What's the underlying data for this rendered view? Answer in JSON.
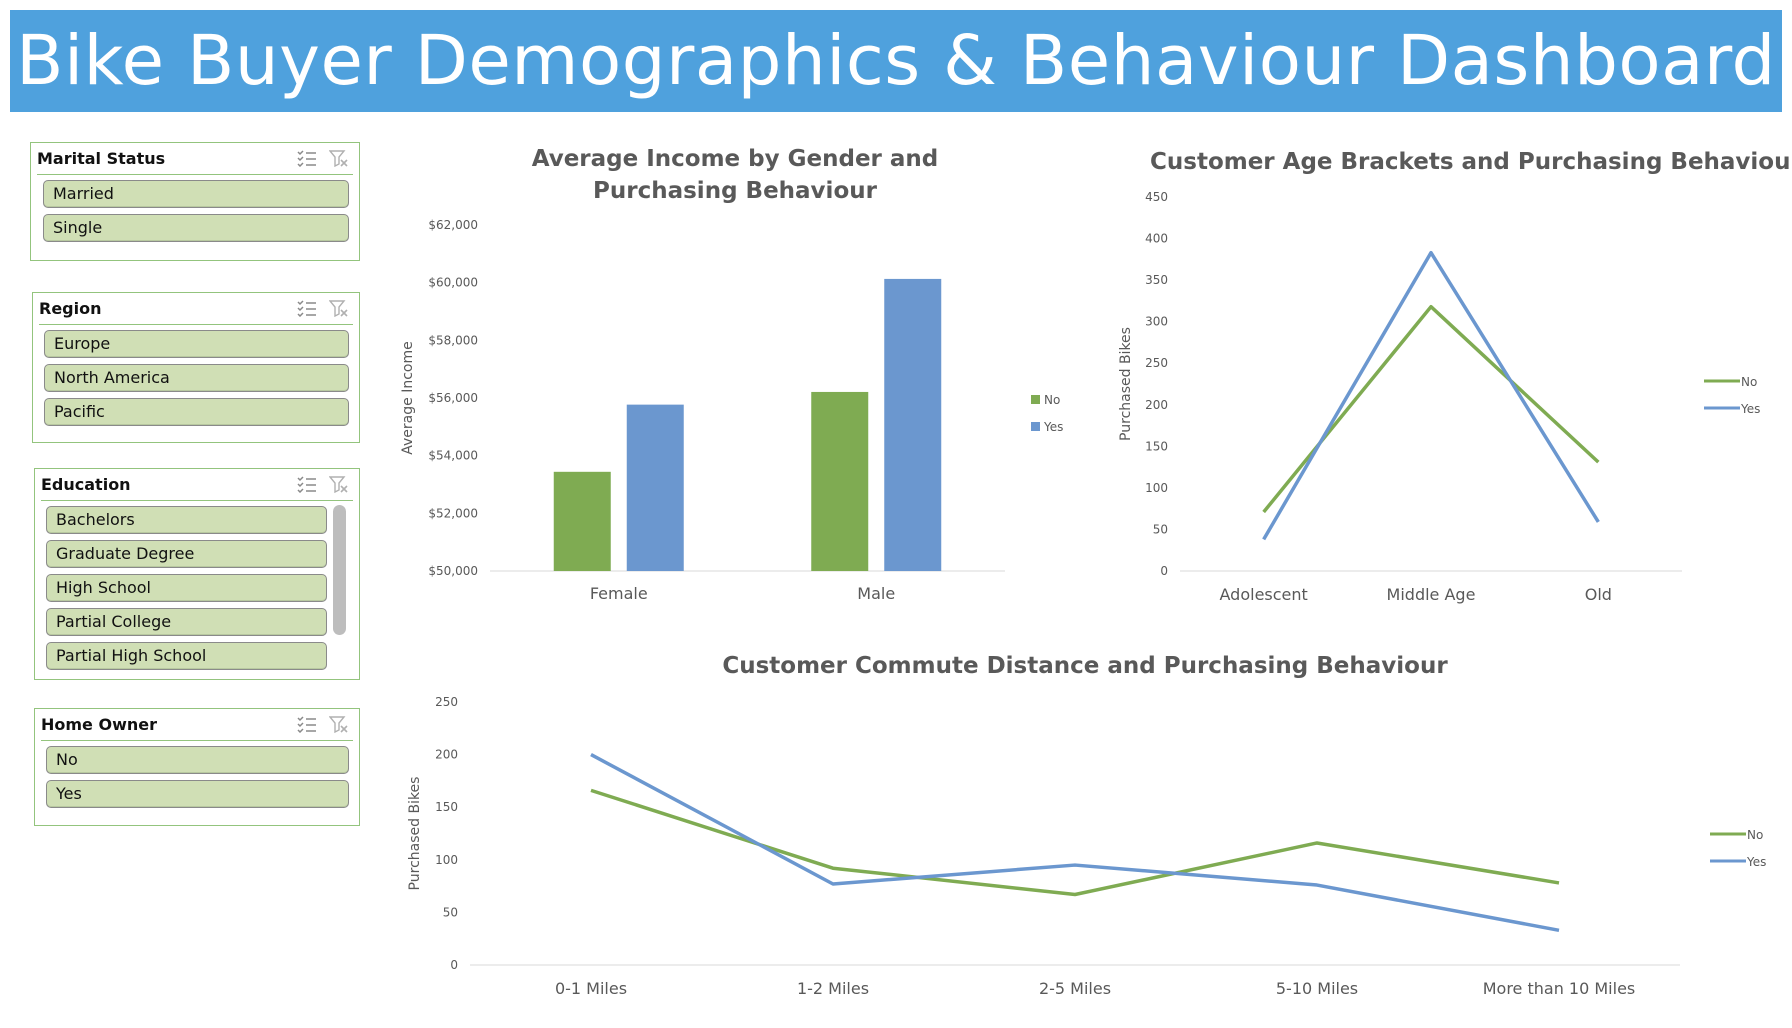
{
  "header": {
    "title": "Bike Buyer Demographics & Behaviour Dashboard"
  },
  "slicers": {
    "marital": {
      "title": "Marital Status",
      "items": [
        "Married",
        "Single"
      ]
    },
    "region": {
      "title": "Region",
      "items": [
        "Europe",
        "North America",
        "Pacific"
      ]
    },
    "education": {
      "title": "Education",
      "items": [
        "Bachelors",
        "Graduate Degree",
        "High School",
        "Partial College",
        "Partial High School"
      ]
    },
    "home": {
      "title": "Home Owner",
      "items": [
        "No",
        "Yes"
      ]
    }
  },
  "colors": {
    "no": "#7fab52",
    "yes": "#6b97cf",
    "banner": "#4fa1dd",
    "slicer_item": "#d0dfb5"
  },
  "icons": {
    "multiselect": "multi-select-icon",
    "clear": "clear-filter-icon"
  },
  "chart_data": [
    {
      "id": "income",
      "type": "bar",
      "title": "Average Income by Gender and Purchasing Behaviour",
      "categories": [
        "Female",
        "Male"
      ],
      "series": [
        {
          "name": "No",
          "values": [
            53440,
            56210
          ]
        },
        {
          "name": "Yes",
          "values": [
            55770,
            60130
          ]
        }
      ],
      "ylabel": "Average Income",
      "ylim": [
        50000,
        62000
      ],
      "yticks": [
        "$50,000",
        "$52,000",
        "$54,000",
        "$56,000",
        "$58,000",
        "$60,000",
        "$62,000"
      ],
      "legend": "right"
    },
    {
      "id": "age",
      "type": "line",
      "title": "Customer Age Brackets and Purchasing Behaviour",
      "categories": [
        "Adolescent",
        "Middle Age",
        "Old"
      ],
      "series": [
        {
          "name": "No",
          "values": [
            71,
            318,
            131
          ]
        },
        {
          "name": "Yes",
          "values": [
            38,
            383,
            59
          ]
        }
      ],
      "ylabel": "Purchased Bikes",
      "ylim": [
        0,
        450
      ],
      "yticks": [
        "0",
        "50",
        "100",
        "150",
        "200",
        "250",
        "300",
        "350",
        "400",
        "450"
      ],
      "legend": "right"
    },
    {
      "id": "commute",
      "type": "line",
      "title": "Customer Commute Distance and Purchasing Behaviour",
      "categories": [
        "0-1 Miles",
        "1-2 Miles",
        "2-5 Miles",
        "5-10 Miles",
        "More than 10 Miles"
      ],
      "series": [
        {
          "name": "No",
          "values": [
            166,
            92,
            67,
            116,
            78
          ]
        },
        {
          "name": "Yes",
          "values": [
            200,
            77,
            95,
            76,
            33
          ]
        }
      ],
      "ylabel": "Purchased Bikes",
      "ylim": [
        0,
        250
      ],
      "yticks": [
        "0",
        "50",
        "100",
        "150",
        "200",
        "250"
      ],
      "legend": "right"
    }
  ]
}
